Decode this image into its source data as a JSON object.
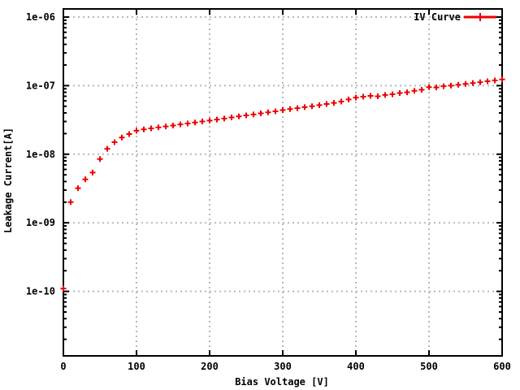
{
  "figure": {
    "background_color": "#ffffff",
    "border_color": "#000000",
    "grid_color": "#b8b8b8",
    "text_color": "#000000"
  },
  "chart_data": {
    "type": "scatter",
    "title": "",
    "xlabel": "Bias Voltage [V]",
    "ylabel": "Leakage Current[A]",
    "x_scale": "linear",
    "y_scale": "log",
    "xlim": [
      0,
      600
    ],
    "y_decades_shown": [
      -10,
      -6
    ],
    "x_ticks": [
      0,
      100,
      200,
      300,
      400,
      500,
      600
    ],
    "y_tick_labels": [
      "1e-06",
      "1e-07",
      "1e-08",
      "1e-09",
      "1e-10"
    ],
    "grid": true,
    "legend_position": "top-right-inside",
    "series": [
      {
        "name": "IV Curve",
        "marker": "plus",
        "color": "#ee0000",
        "x": [
          0,
          10,
          20,
          30,
          40,
          50,
          60,
          70,
          80,
          90,
          100,
          110,
          120,
          130,
          140,
          150,
          160,
          170,
          180,
          190,
          200,
          210,
          220,
          230,
          240,
          250,
          260,
          270,
          280,
          290,
          300,
          310,
          320,
          330,
          340,
          350,
          360,
          370,
          380,
          390,
          400,
          410,
          420,
          430,
          440,
          450,
          460,
          470,
          480,
          490,
          500,
          510,
          520,
          530,
          540,
          550,
          560,
          570,
          580,
          590,
          600
        ],
        "y": [
          1.1e-10,
          2e-09,
          3.2e-09,
          4.3e-09,
          5.4e-09,
          8.5e-09,
          1.2e-08,
          1.5e-08,
          1.75e-08,
          1.97e-08,
          2.2e-08,
          2.3e-08,
          2.38e-08,
          2.46e-08,
          2.54e-08,
          2.62e-08,
          2.72e-08,
          2.8e-08,
          2.9e-08,
          3e-08,
          3.1e-08,
          3.2e-08,
          3.32e-08,
          3.44e-08,
          3.56e-08,
          3.68e-08,
          3.8e-08,
          3.94e-08,
          4.08e-08,
          4.22e-08,
          4.4e-08,
          4.55e-08,
          4.7e-08,
          4.85e-08,
          5e-08,
          5.2e-08,
          5.4e-08,
          5.6e-08,
          5.85e-08,
          6.3e-08,
          6.7e-08,
          6.9e-08,
          7.1e-08,
          7e-08,
          7.3e-08,
          7.5e-08,
          7.8e-08,
          8e-08,
          8.4e-08,
          8.7e-08,
          9.5e-08,
          9.4e-08,
          9.8e-08,
          1e-07,
          1.03e-07,
          1.06e-07,
          1.09e-07,
          1.12e-07,
          1.16e-07,
          1.19e-07,
          1.23e-07
        ]
      }
    ]
  }
}
